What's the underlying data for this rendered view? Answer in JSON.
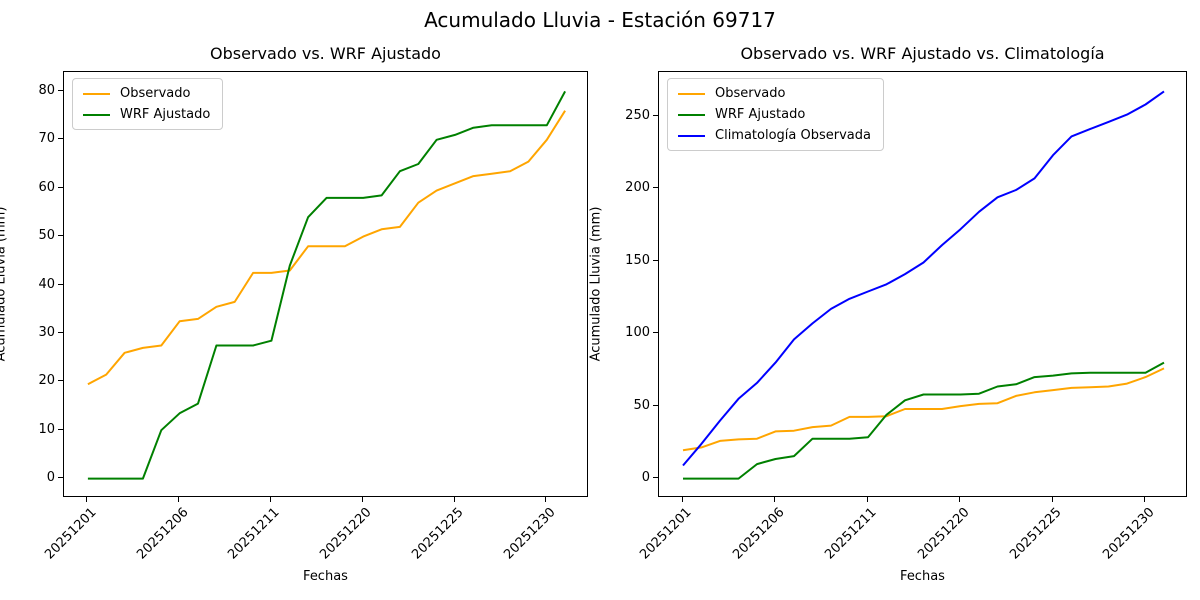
{
  "suptitle": "Acumulado Lluvia - Estación 69717",
  "chart_data": [
    {
      "type": "line",
      "title": "Observado vs. WRF Ajustado",
      "xlabel": "Fechas",
      "ylabel": "Acumulado Lluvia (mm)",
      "x_tick_labels": [
        "20251201",
        "20251206",
        "20251211",
        "20251220",
        "20251225",
        "20251230"
      ],
      "x_tick_indices": [
        0,
        5,
        10,
        15,
        20,
        25
      ],
      "n_points": 27,
      "xlim": [
        -1.3,
        27.3
      ],
      "ylim": [
        -4,
        84
      ],
      "y_ticks": [
        0,
        10,
        20,
        30,
        40,
        50,
        60,
        70,
        80
      ],
      "grid": false,
      "legend_position": "upper left",
      "series": [
        {
          "name": "Observado",
          "color": "#FFA500",
          "values": [
            19.5,
            21.5,
            26,
            27,
            27.5,
            32.5,
            33,
            35.5,
            36.5,
            42.5,
            42.5,
            43,
            48,
            48,
            48,
            50,
            51.5,
            52,
            57,
            59.5,
            61,
            62.5,
            63,
            63.5,
            65.5,
            70,
            76
          ]
        },
        {
          "name": "WRF Ajustado",
          "color": "#008000",
          "values": [
            0,
            0,
            0,
            0,
            10,
            13.5,
            15.5,
            27.5,
            27.5,
            27.5,
            28.5,
            44,
            54,
            58,
            58,
            58,
            58.5,
            63.5,
            65,
            70,
            71,
            72.5,
            73,
            73,
            73,
            73,
            80
          ]
        }
      ]
    },
    {
      "type": "line",
      "title": "Observado vs. WRF Ajustado vs. Climatología",
      "xlabel": "Fechas",
      "ylabel": "Acumulado Lluvia (mm)",
      "x_tick_labels": [
        "20251201",
        "20251206",
        "20251211",
        "20251220",
        "20251225",
        "20251230"
      ],
      "x_tick_indices": [
        0,
        5,
        10,
        15,
        20,
        25
      ],
      "n_points": 27,
      "xlim": [
        -1.3,
        27.3
      ],
      "ylim": [
        -13.4,
        280.4
      ],
      "y_ticks": [
        0,
        50,
        100,
        150,
        200,
        250
      ],
      "grid": false,
      "legend_position": "upper left",
      "series": [
        {
          "name": "Observado",
          "color": "#FFA500",
          "values": [
            19.5,
            21.5,
            26,
            27,
            27.5,
            32.5,
            33,
            35.5,
            36.5,
            42.5,
            42.5,
            43,
            48,
            48,
            48,
            50,
            51.5,
            52,
            57,
            59.5,
            61,
            62.5,
            63,
            63.5,
            65.5,
            70,
            76
          ]
        },
        {
          "name": "WRF Ajustado",
          "color": "#008000",
          "values": [
            0,
            0,
            0,
            0,
            10,
            13.5,
            15.5,
            27.5,
            27.5,
            27.5,
            28.5,
            44,
            54,
            58,
            58,
            58,
            58.5,
            63.5,
            65,
            70,
            71,
            72.5,
            73,
            73,
            73,
            73,
            80
          ]
        },
        {
          "name": "Climatología Observada",
          "color": "#0000FF",
          "values": [
            9,
            24,
            40,
            55,
            66,
            80,
            96,
            107,
            117,
            124,
            129,
            134,
            141,
            149,
            161,
            172,
            184,
            194,
            199,
            207,
            223,
            236,
            241,
            246,
            251,
            258,
            267
          ]
        }
      ]
    }
  ]
}
